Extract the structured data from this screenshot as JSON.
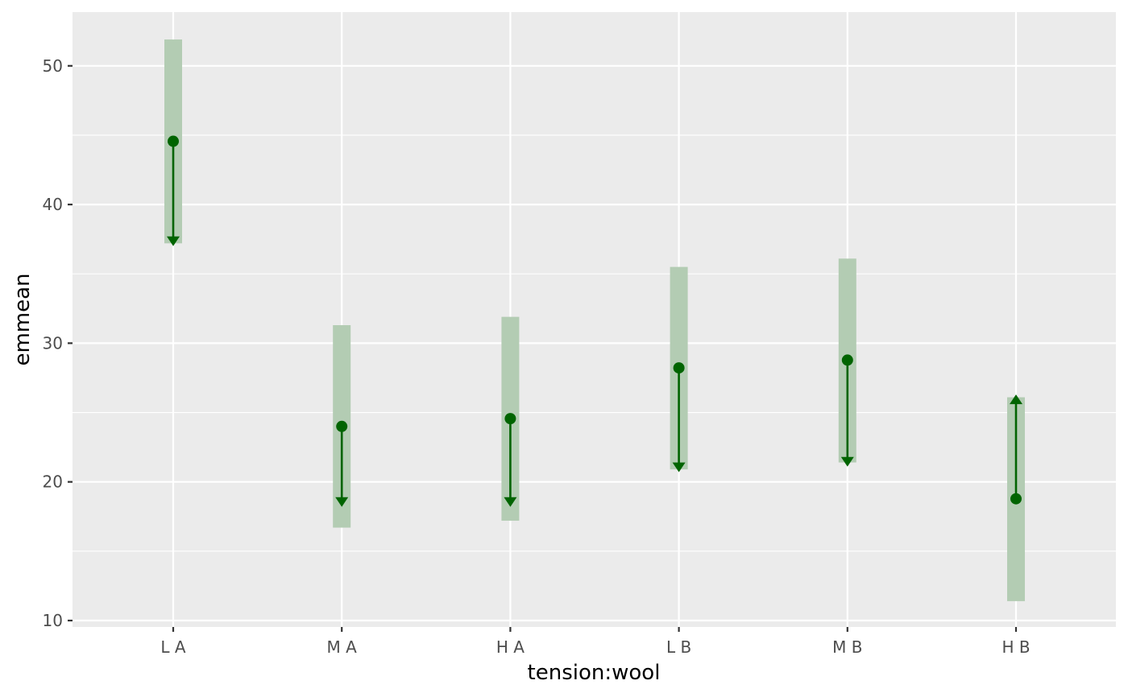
{
  "chart_data": {
    "type": "scatter",
    "title": "",
    "xlabel": "tension:wool",
    "ylabel": "emmean",
    "categories": [
      "L A",
      "M A",
      "H A",
      "L B",
      "M B",
      "H B"
    ],
    "ylim": [
      9.5,
      53.9
    ],
    "y_ticks": [
      10,
      20,
      30,
      40,
      50
    ],
    "grid": true,
    "legend": "none",
    "series": [
      {
        "emmean": [
          44.56,
          24.0,
          24.56,
          28.22,
          28.78,
          18.78
        ],
        "ci_lower": [
          37.2,
          16.7,
          17.2,
          20.9,
          21.4,
          11.4
        ],
        "ci_upper": [
          51.9,
          31.3,
          31.9,
          35.5,
          36.1,
          26.1
        ],
        "comparison_arrow_end": [
          37.0,
          18.2,
          18.2,
          20.7,
          21.1,
          26.3
        ]
      }
    ],
    "colors": {
      "panel": "#ebebeb",
      "grid": "#ffffff",
      "point": "#006400",
      "interval": "#b3ccb3"
    }
  }
}
